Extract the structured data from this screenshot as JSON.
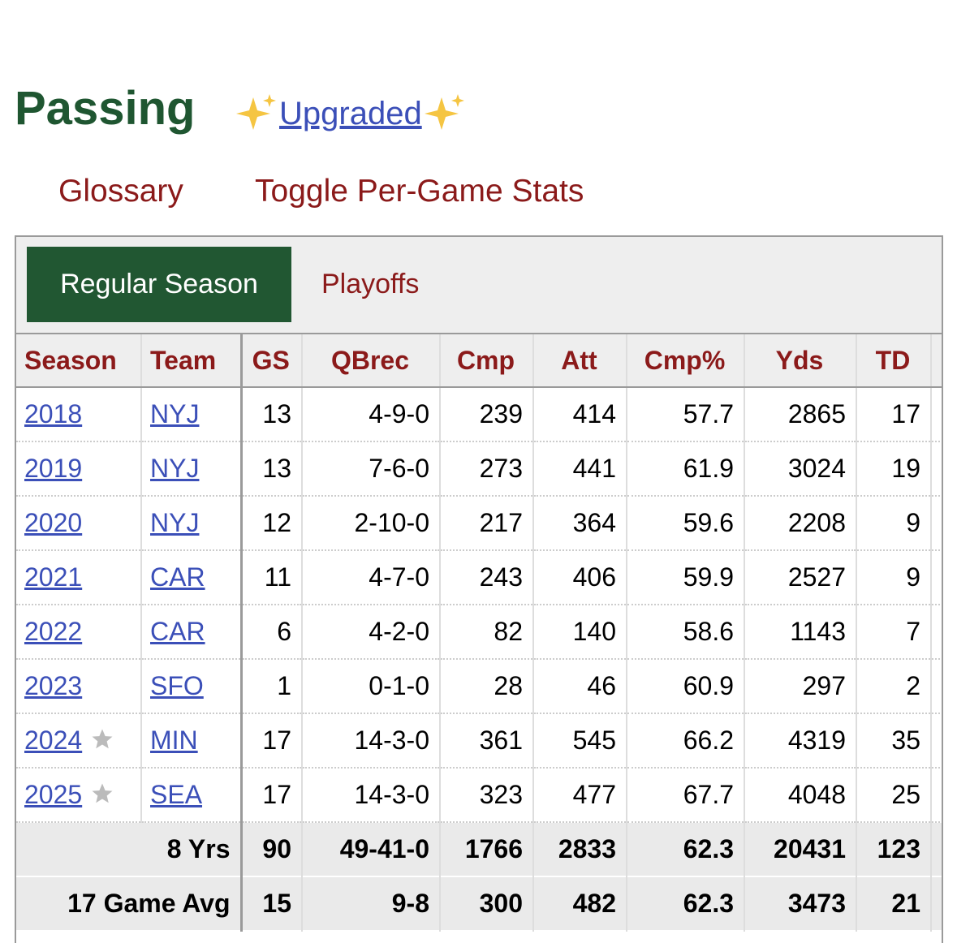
{
  "header": {
    "title": "Passing",
    "link": "Upgraded"
  },
  "nav": {
    "links": [
      "Glossary",
      "Toggle Per-Game Stats"
    ]
  },
  "tabs": [
    "Regular Season",
    "Playoffs"
  ],
  "table": {
    "columns": [
      "Season",
      "Team",
      "GS",
      "QBrec",
      "Cmp",
      "Att",
      "Cmp%",
      "Yds",
      "TD"
    ],
    "rows": [
      [
        2018,
        "NYJ",
        13,
        "4-9-0",
        239,
        414,
        57.7,
        2865,
        17
      ],
      [
        2019,
        "NYJ",
        13,
        "7-6-0",
        273,
        441,
        61.9,
        3024,
        19
      ],
      [
        2020,
        "NYJ",
        12,
        "2-10-0",
        217,
        364,
        59.6,
        2208,
        9
      ],
      [
        2021,
        "CAR",
        11,
        "4-7-0",
        243,
        406,
        59.9,
        2527,
        9
      ],
      [
        2022,
        "CAR",
        6,
        "4-2-0",
        82,
        140,
        58.6,
        1143,
        7
      ],
      [
        2023,
        "SFO",
        1,
        "0-1-0",
        28,
        46,
        60.9,
        297,
        2
      ],
      [
        2024,
        "MIN",
        17,
        "14-3-0",
        361,
        545,
        66.2,
        4319,
        35
      ],
      [
        2025,
        "SEA",
        17,
        "14-3-0",
        323,
        477,
        67.7,
        4048,
        25
      ]
    ],
    "pro_bowl": [
      false,
      false,
      false,
      false,
      false,
      false,
      true,
      true
    ],
    "footer": [
      [
        "8 Yrs",
        90,
        "49-41-0",
        1766,
        2833,
        62.3,
        20431,
        123
      ],
      [
        "17 Game Avg",
        15,
        "9-8",
        300,
        482,
        62.3,
        3473,
        21
      ]
    ]
  }
}
